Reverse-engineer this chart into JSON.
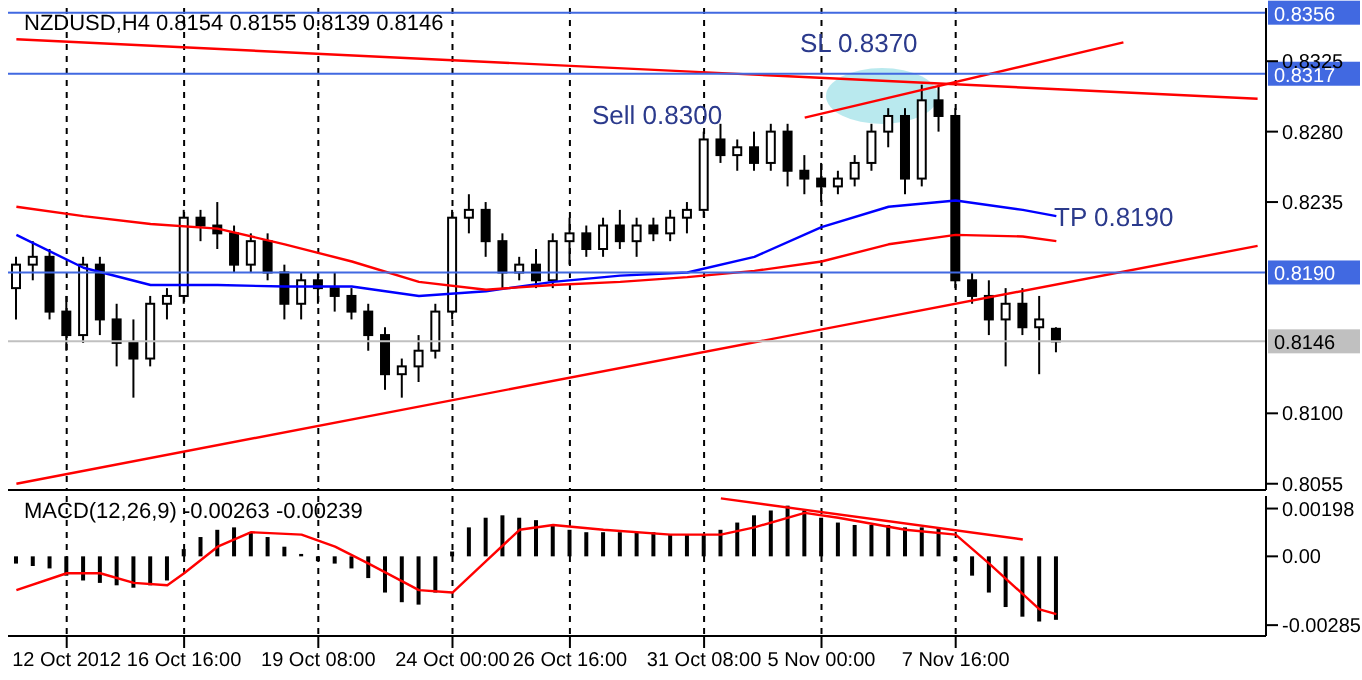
{
  "chart_data": [
    {
      "type": "candlestick",
      "title": "NZDUSD,H4 0.8154 0.8155 0.8139 0.8146",
      "color": "#000000",
      "tick_labels": "y",
      "grid": "x",
      "categories": [
        null,
        null,
        null,
        null,
        null,
        null,
        null,
        null,
        null,
        null,
        null,
        null,
        null,
        null,
        null,
        null,
        null,
        null,
        null,
        null,
        null,
        null,
        null,
        null,
        null,
        null,
        null,
        null,
        null,
        null,
        null,
        null,
        null,
        null,
        null,
        null,
        null,
        null,
        null,
        null,
        null,
        null,
        null,
        null,
        null,
        null,
        null,
        null,
        null,
        null,
        null,
        null,
        null,
        null,
        null,
        null,
        null,
        null,
        null,
        null,
        null,
        null,
        null,
        null,
        null,
        null,
        null,
        null,
        null,
        null,
        null,
        null,
        null,
        null,
        null
      ],
      "ohlc": [
        [
          0.818,
          0.82,
          0.816,
          0.8195
        ],
        [
          0.8195,
          0.821,
          0.8185,
          0.82
        ],
        [
          0.82,
          0.8205,
          0.816,
          0.8165
        ],
        [
          0.8165,
          0.8175,
          0.814,
          0.815
        ],
        [
          0.815,
          0.82,
          0.8145,
          0.8195
        ],
        [
          0.8195,
          0.82,
          0.815,
          0.816
        ],
        [
          0.816,
          0.817,
          0.813,
          0.8145
        ],
        [
          0.8145,
          0.816,
          0.811,
          0.8135
        ],
        [
          0.8135,
          0.8175,
          0.813,
          0.817
        ],
        [
          0.817,
          0.818,
          0.816,
          0.8175
        ],
        [
          0.8175,
          0.823,
          0.817,
          0.8225
        ],
        [
          0.8225,
          0.823,
          0.821,
          0.822
        ],
        [
          0.822,
          0.8235,
          0.8205,
          0.8215
        ],
        [
          0.8215,
          0.822,
          0.819,
          0.8195
        ],
        [
          0.8195,
          0.8215,
          0.819,
          0.821
        ],
        [
          0.821,
          0.8215,
          0.8185,
          0.819
        ],
        [
          0.819,
          0.8195,
          0.816,
          0.817
        ],
        [
          0.817,
          0.819,
          0.816,
          0.8185
        ],
        [
          0.8185,
          0.819,
          0.817,
          0.818
        ],
        [
          0.818,
          0.819,
          0.8165,
          0.8175
        ],
        [
          0.8175,
          0.818,
          0.816,
          0.8165
        ],
        [
          0.8165,
          0.817,
          0.814,
          0.815
        ],
        [
          0.815,
          0.8155,
          0.8115,
          0.8125
        ],
        [
          0.8125,
          0.8135,
          0.811,
          0.813
        ],
        [
          0.813,
          0.815,
          0.812,
          0.814
        ],
        [
          0.814,
          0.817,
          0.8135,
          0.8165
        ],
        [
          0.8165,
          0.823,
          0.816,
          0.8225
        ],
        [
          0.8225,
          0.824,
          0.8215,
          0.823
        ],
        [
          0.823,
          0.8235,
          0.82,
          0.821
        ],
        [
          0.821,
          0.8215,
          0.818,
          0.819
        ],
        [
          0.819,
          0.82,
          0.8185,
          0.8195
        ],
        [
          0.8195,
          0.8205,
          0.818,
          0.8185
        ],
        [
          0.8185,
          0.8215,
          0.818,
          0.821
        ],
        [
          0.821,
          0.8225,
          0.8195,
          0.8215
        ],
        [
          0.8215,
          0.822,
          0.82,
          0.8205
        ],
        [
          0.8205,
          0.8225,
          0.82,
          0.822
        ],
        [
          0.822,
          0.823,
          0.8205,
          0.821
        ],
        [
          0.821,
          0.8225,
          0.82,
          0.822
        ],
        [
          0.822,
          0.8225,
          0.821,
          0.8215
        ],
        [
          0.8215,
          0.823,
          0.821,
          0.8225
        ],
        [
          0.8225,
          0.8235,
          0.8215,
          0.823
        ],
        [
          0.823,
          0.828,
          0.8225,
          0.8275
        ],
        [
          0.8275,
          0.8285,
          0.826,
          0.8265
        ],
        [
          0.8265,
          0.8275,
          0.8255,
          0.827
        ],
        [
          0.827,
          0.828,
          0.8255,
          0.826
        ],
        [
          0.826,
          0.8285,
          0.8255,
          0.828
        ],
        [
          0.828,
          0.8285,
          0.8245,
          0.8255
        ],
        [
          0.8255,
          0.8265,
          0.824,
          0.825
        ],
        [
          0.825,
          0.826,
          0.8235,
          0.8245
        ],
        [
          0.8245,
          0.8255,
          0.824,
          0.825
        ],
        [
          0.825,
          0.8265,
          0.8245,
          0.826
        ],
        [
          0.826,
          0.8285,
          0.8255,
          0.828
        ],
        [
          0.828,
          0.8295,
          0.827,
          0.829
        ],
        [
          0.829,
          0.8295,
          0.824,
          0.825
        ],
        [
          0.825,
          0.831,
          0.8245,
          0.83
        ],
        [
          0.83,
          0.831,
          0.828,
          0.829
        ],
        [
          0.829,
          0.8295,
          0.818,
          0.8185
        ],
        [
          0.8185,
          0.819,
          0.817,
          0.8175
        ],
        [
          0.8175,
          0.8185,
          0.815,
          0.816
        ],
        [
          0.816,
          0.818,
          0.813,
          0.817
        ],
        [
          0.817,
          0.818,
          0.815,
          0.8155
        ],
        [
          0.8155,
          0.8175,
          0.8125,
          0.816
        ],
        [
          0.8154,
          0.8155,
          0.8139,
          0.8146
        ],
        null,
        null,
        null,
        null,
        null,
        null,
        null,
        null,
        null,
        null,
        null,
        null
      ],
      "series": [
        {
          "type": "line",
          "color": "#0000ff",
          "values": [
            0.8214,
            null,
            null,
            null,
            0.8193,
            null,
            null,
            null,
            0.8182,
            null,
            null,
            null,
            0.8182,
            null,
            null,
            null,
            0.8181,
            null,
            null,
            null,
            0.8181,
            null,
            null,
            null,
            0.8175,
            null,
            null,
            null,
            0.8178,
            null,
            null,
            null,
            0.8184,
            null,
            null,
            null,
            0.8188,
            null,
            null,
            null,
            0.819,
            null,
            null,
            null,
            0.82,
            null,
            null,
            null,
            0.8219,
            null,
            null,
            null,
            0.8232,
            null,
            null,
            null,
            0.8236,
            null,
            null,
            null,
            0.823,
            null,
            0.8226,
            null,
            null,
            null,
            null,
            null,
            null,
            null,
            null,
            null,
            null,
            null,
            null
          ]
        },
        {
          "type": "line",
          "color": "#ff0000",
          "values": [
            0.8232,
            null,
            null,
            null,
            0.8226,
            null,
            null,
            null,
            0.8221,
            null,
            null,
            null,
            0.8218,
            null,
            null,
            null,
            0.8208,
            null,
            null,
            null,
            0.8197,
            null,
            null,
            null,
            0.8184,
            null,
            null,
            null,
            0.8179,
            null,
            null,
            null,
            0.8182,
            null,
            null,
            null,
            0.8184,
            null,
            null,
            null,
            0.8187,
            null,
            null,
            null,
            0.8191,
            null,
            null,
            null,
            0.8197,
            null,
            null,
            null,
            0.8208,
            null,
            null,
            null,
            0.8214,
            null,
            null,
            null,
            0.8213,
            null,
            0.821,
            null,
            null,
            null,
            null,
            null,
            null,
            null,
            null,
            null,
            null,
            null,
            null
          ]
        },
        {
          "type": "line",
          "color": "#ff0000",
          "values": [
            0.8055,
            null,
            null,
            null,
            null,
            null,
            null,
            null,
            null,
            null,
            null,
            null,
            null,
            null,
            null,
            null,
            null,
            null,
            null,
            null,
            null,
            null,
            null,
            null,
            null,
            null,
            null,
            null,
            null,
            null,
            null,
            null,
            null,
            null,
            null,
            null,
            null,
            null,
            null,
            null,
            null,
            null,
            null,
            null,
            null,
            null,
            null,
            null,
            null,
            null,
            null,
            null,
            null,
            null,
            null,
            null,
            null,
            null,
            null,
            null,
            null,
            null,
            null,
            null,
            null,
            null,
            null,
            null,
            null,
            null,
            null,
            null,
            null,
            null,
            0.8207
          ]
        },
        {
          "type": "line",
          "color": "#ff0000",
          "values": [
            null,
            null,
            null,
            null,
            null,
            null,
            null,
            null,
            null,
            null,
            null,
            null,
            null,
            null,
            null,
            null,
            null,
            null,
            null,
            null,
            null,
            null,
            null,
            null,
            null,
            null,
            null,
            null,
            null,
            null,
            null,
            null,
            null,
            null,
            null,
            null,
            null,
            null,
            null,
            null,
            null,
            null,
            null,
            null,
            null,
            null,
            null,
            0.8289,
            null,
            null,
            null,
            null,
            null,
            null,
            null,
            null,
            null,
            null,
            null,
            null,
            null,
            null,
            null,
            null,
            null,
            null,
            0.8337,
            null,
            null,
            null,
            null,
            null,
            null,
            null,
            null
          ]
        },
        {
          "type": "line",
          "color": "#ff0000",
          "values": [
            0.8339,
            null,
            null,
            null,
            null,
            null,
            null,
            null,
            null,
            null,
            null,
            null,
            null,
            null,
            null,
            null,
            null,
            null,
            null,
            null,
            null,
            null,
            null,
            null,
            null,
            null,
            null,
            null,
            null,
            null,
            null,
            null,
            null,
            null,
            null,
            null,
            null,
            null,
            null,
            null,
            null,
            null,
            null,
            null,
            null,
            null,
            null,
            null,
            null,
            null,
            null,
            null,
            null,
            null,
            null,
            null,
            null,
            null,
            null,
            null,
            null,
            null,
            null,
            null,
            null,
            null,
            null,
            null,
            null,
            null,
            null,
            null,
            null,
            null,
            0.8301
          ]
        }
      ],
      "ylim": [
        0.8051,
        0.8359
      ],
      "yticks": [
        0.8055,
        {
          "value": 0.81,
          "label": "0.8100"
        },
        0.8235,
        {
          "value": 0.828,
          "label": "0.8280"
        },
        0.8325
      ],
      "ref_lines": [
        {
          "axis": "y",
          "value": 0.8356,
          "label": "0.8356",
          "color": "#4169e1"
        },
        {
          "axis": "y",
          "value": 0.8317,
          "label": "0.8317",
          "color": "#4169e1"
        },
        {
          "axis": "y",
          "value": 0.819,
          "label": "0.8190",
          "color": "#4169e1"
        },
        {
          "axis": "y",
          "value": 0.8146,
          "label": "0.8146",
          "color": "#c0c0c0"
        }
      ],
      "annotations": [
        "Sell 0.8300",
        "SL 0.8370",
        "TP 0.8190"
      ]
    },
    {
      "type": "bar",
      "title": "MACD(12,26,9) -0.00263 -0.00239",
      "grid": "x",
      "categories": [
        null,
        null,
        null,
        "12 Oct 2012",
        null,
        null,
        null,
        null,
        null,
        null,
        "16 Oct 16:00",
        null,
        null,
        null,
        null,
        null,
        null,
        null,
        "19 Oct 08:00",
        null,
        null,
        null,
        null,
        null,
        null,
        null,
        "24 Oct 00:00",
        null,
        null,
        null,
        null,
        null,
        null,
        "26 Oct 16:00",
        null,
        null,
        null,
        null,
        null,
        null,
        null,
        "31 Oct 08:00",
        null,
        null,
        null,
        null,
        null,
        null,
        "5 Nov 00:00",
        null,
        null,
        null,
        null,
        null,
        null,
        null,
        "7 Nov 16:00",
        null,
        null,
        null,
        null,
        null,
        null,
        null,
        null,
        null,
        null,
        null,
        null,
        null,
        null,
        null,
        null,
        null,
        null
      ],
      "series": [
        {
          "type": "bar",
          "color": "#000000",
          "values": [
            -0.0003,
            -0.0004,
            -0.0005,
            -0.0008,
            -0.001,
            -0.0011,
            -0.0012,
            -0.0013,
            -0.0012,
            -0.001,
            0.0003,
            0.0008,
            0.0011,
            0.0012,
            0.001,
            0.0008,
            0.0004,
            0.0001,
            -0.0002,
            -0.0003,
            -0.0005,
            -0.0009,
            -0.0015,
            -0.0019,
            -0.002,
            -0.0015,
            0.0002,
            0.0012,
            0.0016,
            0.0017,
            0.0016,
            0.0015,
            0.0013,
            0.0011,
            0.001,
            0.001,
            0.001,
            0.001,
            0.001,
            0.0009,
            0.0009,
            0.0009,
            0.0011,
            0.0014,
            0.0017,
            0.0019,
            0.0021,
            0.0019,
            0.0016,
            0.0014,
            0.0013,
            0.0013,
            0.0013,
            0.0012,
            0.0012,
            0.0012,
            -0.0002,
            -0.0008,
            -0.0015,
            -0.0021,
            -0.0025,
            -0.0027,
            -0.00263,
            null,
            null,
            null,
            null,
            null,
            null,
            null,
            null,
            null,
            null,
            null,
            null
          ]
        },
        {
          "type": "line",
          "color": "#ff0000",
          "values": [
            -0.0014,
            null,
            null,
            -0.0007,
            null,
            -0.0007,
            null,
            -0.0011,
            null,
            -0.0012,
            -0.0007,
            null,
            0.0004,
            null,
            0.001,
            null,
            null,
            0.0009,
            null,
            0.0004,
            null,
            -0.0003,
            null,
            null,
            -0.0014,
            null,
            -0.0015,
            null,
            -0.0002,
            null,
            0.0011,
            null,
            0.0013,
            null,
            null,
            0.0011,
            null,
            null,
            null,
            0.0009,
            null,
            null,
            0.0009,
            null,
            0.0012,
            null,
            null,
            0.0018,
            null,
            0.0016,
            null,
            null,
            null,
            0.0011,
            null,
            null,
            0.0009,
            null,
            -0.0003,
            null,
            null,
            -0.0022,
            -0.00239,
            null,
            null,
            null,
            null,
            null,
            null,
            null,
            null,
            null,
            null,
            null,
            null
          ]
        },
        {
          "type": "line",
          "color": "#ff0000",
          "values": [
            null,
            null,
            null,
            null,
            null,
            null,
            null,
            null,
            null,
            null,
            null,
            null,
            null,
            null,
            null,
            null,
            null,
            null,
            null,
            null,
            null,
            null,
            null,
            null,
            null,
            null,
            null,
            null,
            null,
            null,
            null,
            null,
            null,
            null,
            null,
            null,
            null,
            null,
            null,
            null,
            null,
            null,
            0.0024,
            null,
            null,
            null,
            null,
            null,
            null,
            null,
            null,
            null,
            null,
            null,
            null,
            null,
            null,
            null,
            null,
            null,
            0.0007,
            null,
            null,
            null,
            null,
            null,
            null,
            null,
            null,
            null,
            null,
            null,
            null,
            null,
            null
          ]
        }
      ],
      "ylim": [
        -0.0033,
        0.0025
      ],
      "yticks": [
        0.00198,
        {
          "value": 0,
          "label": "0.00"
        },
        -0.00285
      ]
    }
  ]
}
